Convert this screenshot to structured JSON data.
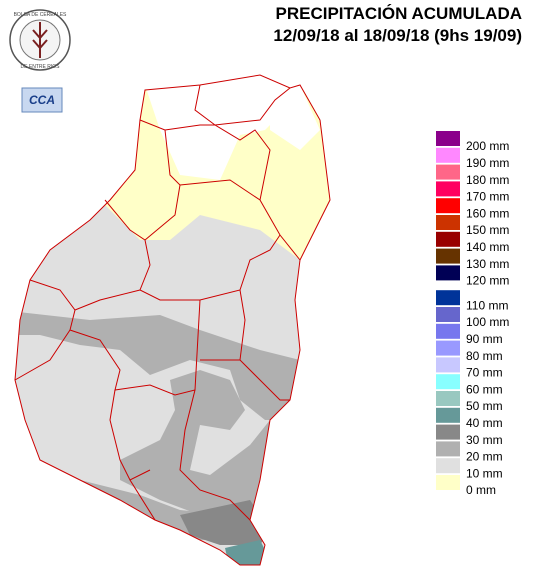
{
  "header": {
    "title": "PRECIPITACIÓN ACUMULADA",
    "subtitle": "12/09/18 al 18/09/18 (9hs 19/09)"
  },
  "logo": {
    "top_text": "BOLSA DE CEREALES",
    "bottom_text": "DE ENTRE RIOS",
    "badge": "CCA"
  },
  "legend": {
    "items": [
      {
        "label": "200 mm",
        "color": "#8b008b"
      },
      {
        "label": "190 mm",
        "color": "#ff88ff"
      },
      {
        "label": "180 mm",
        "color": "#ff6688"
      },
      {
        "label": "170 mm",
        "color": "#ff0060"
      },
      {
        "label": "160 mm",
        "color": "#ff0000"
      },
      {
        "label": "150 mm",
        "color": "#cc3300"
      },
      {
        "label": "140 mm",
        "color": "#990000"
      },
      {
        "label": "130 mm",
        "color": "#663300"
      },
      {
        "label": "120 mm",
        "color": "#000055"
      },
      {
        "label": "110 mm",
        "color": "#003399"
      },
      {
        "label": "100 mm",
        "color": "#6666cc"
      },
      {
        "label": "90 mm",
        "color": "#7777ee"
      },
      {
        "label": "80 mm",
        "color": "#9999ff"
      },
      {
        "label": "70 mm",
        "color": "#c8c8ff"
      },
      {
        "label": "60 mm",
        "color": "#88ffff"
      },
      {
        "label": "50 mm",
        "color": "#99c8c0"
      },
      {
        "label": "40 mm",
        "color": "#669999"
      },
      {
        "label": "30 mm",
        "color": "#888888"
      },
      {
        "label": "20 mm",
        "color": "#b0b0b0"
      },
      {
        "label": "10 mm",
        "color": "#e0e0e0"
      },
      {
        "label": "0 mm",
        "color": "#ffffc8"
      }
    ]
  }
}
